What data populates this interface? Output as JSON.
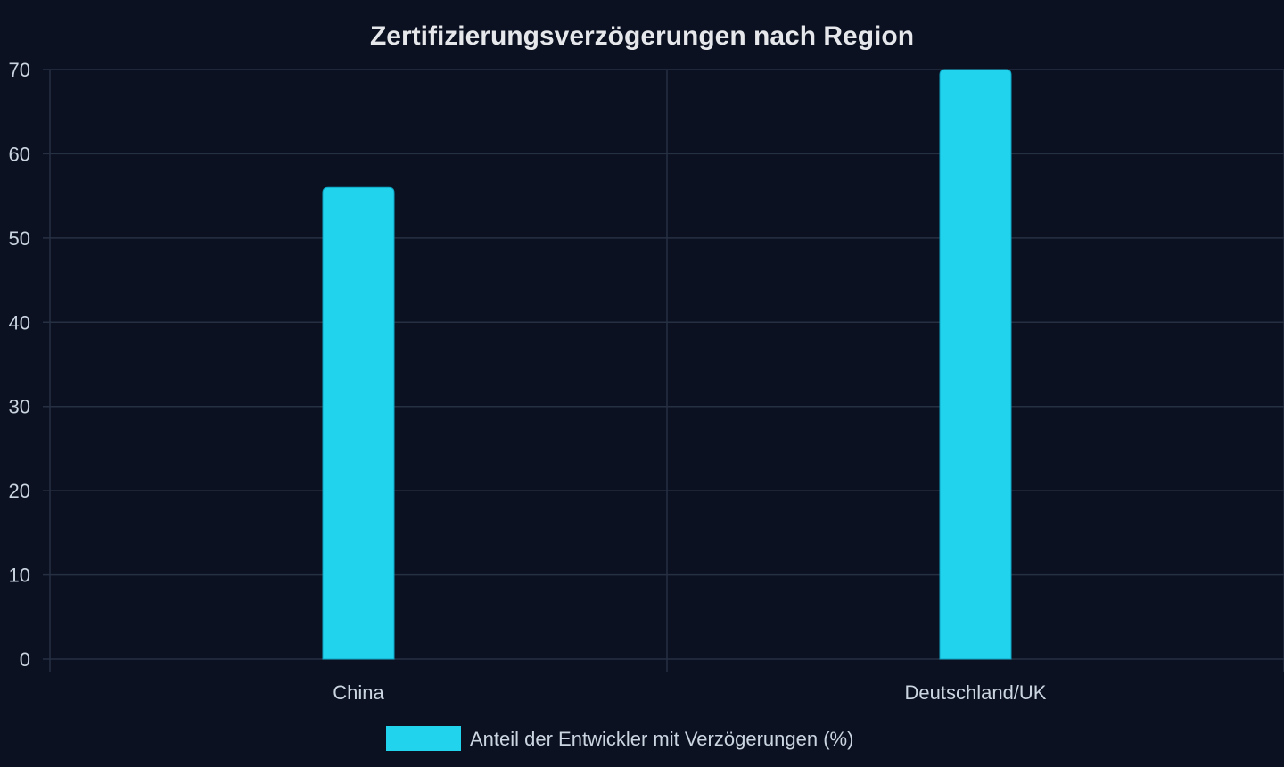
{
  "chart_data": {
    "type": "bar",
    "title": "Zertifizierungsverzögerungen nach Region",
    "categories": [
      "China",
      "Deutschland/UK"
    ],
    "series": [
      {
        "name": "Anteil der Entwickler mit Verzögerungen (%)",
        "values": [
          56,
          70
        ],
        "color": "#22d3ee"
      }
    ],
    "xlabel": "",
    "ylabel": "",
    "ylim": [
      0,
      70
    ],
    "yticks": [
      0,
      10,
      20,
      30,
      40,
      50,
      60,
      70
    ],
    "grid": true,
    "legend_position": "bottom-center"
  },
  "colors": {
    "background": "#0b1120",
    "grid": "#263043",
    "text": "#cbd5e1",
    "title": "#e5e7eb"
  }
}
